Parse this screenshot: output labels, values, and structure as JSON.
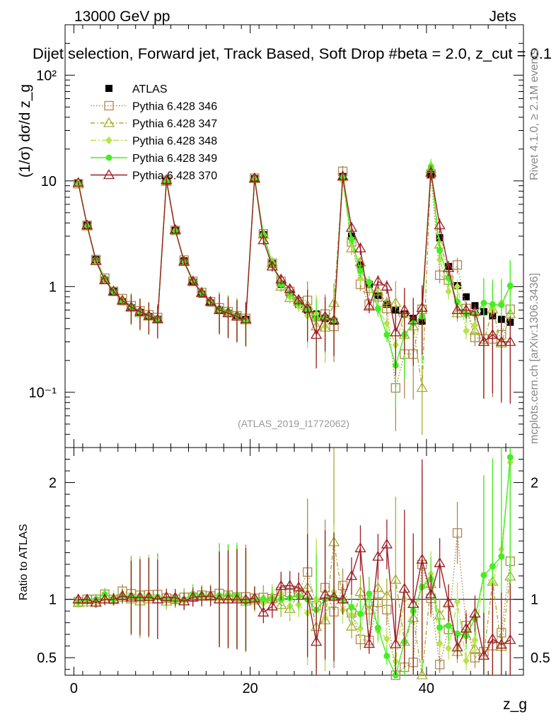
{
  "header": {
    "energy": "13000 GeV pp",
    "process": "Jets",
    "title": "Dijet selection, Forward jet, Track Based, Soft Drop #beta = 2.0, z_cut = 0.1",
    "watermark": "(ATLAS_2019_I1772062)",
    "side_top": "Rivet 4.1.0, ≥ 2.1M events",
    "side_bottom": "mcplots.cern.ch [arXiv:1306.3436]"
  },
  "chart_data": {
    "type": "line",
    "title": "Dijet selection, Forward jet, Track Based, Soft Drop #beta = 2.0, z_cut = 0.1",
    "xlabel": "z_g",
    "ylabel": "(1/σ) dσ/d z_g",
    "ratio_ylabel": "Ratio to ATLAS",
    "xlim": [
      -1,
      51
    ],
    "ylim": [
      0.03,
      300
    ],
    "yscale": "log",
    "ratio_ylim": [
      0.35,
      2.3
    ],
    "x_ticks": [
      "0",
      "20",
      "40"
    ],
    "y_tick_labels": [
      "10⁻¹",
      "1",
      "10",
      "10²"
    ],
    "ratio_ticks": [
      "0.5",
      "1",
      "2"
    ],
    "x": [
      0.5,
      1.5,
      2.5,
      3.5,
      4.5,
      5.5,
      6.5,
      7.5,
      8.5,
      9.5,
      10.5,
      11.5,
      12.5,
      13.5,
      14.5,
      15.5,
      16.5,
      17.5,
      18.5,
      19.5,
      20.5,
      21.5,
      22.5,
      23.5,
      24.5,
      25.5,
      26.5,
      27.5,
      28.5,
      29.5,
      30.5,
      31.5,
      32.5,
      33.5,
      34.5,
      35.5,
      36.5,
      37.5,
      38.5,
      39.5,
      40.5,
      41.5,
      42.5,
      43.5,
      44.5,
      45.5,
      46.5,
      47.5,
      48.5,
      49.5
    ],
    "series": [
      {
        "name": "ATLAS",
        "color": "#000000",
        "marker": "square-filled",
        "values": [
          9.6,
          3.8,
          1.8,
          1.15,
          0.9,
          0.72,
          0.63,
          0.57,
          0.52,
          0.49,
          10.0,
          3.4,
          1.75,
          1.1,
          0.85,
          0.7,
          0.6,
          0.56,
          0.52,
          0.49,
          10.5,
          3.1,
          1.65,
          1.05,
          0.85,
          0.68,
          0.6,
          0.55,
          0.5,
          0.47,
          11.0,
          3.0,
          1.6,
          1.05,
          0.82,
          0.68,
          0.6,
          0.55,
          0.5,
          0.47,
          11.5,
          2.9,
          1.55,
          1.02,
          0.8,
          0.66,
          0.58,
          0.53,
          0.49,
          0.46
        ]
      },
      {
        "name": "Pythia 6.428 346",
        "color": "#b08850",
        "marker": "square-open",
        "values": [
          9.4,
          3.8,
          1.8,
          1.2,
          0.9,
          0.77,
          0.66,
          0.59,
          0.54,
          0.51,
          10.1,
          3.4,
          1.78,
          1.12,
          0.88,
          0.72,
          0.63,
          0.58,
          0.53,
          0.5,
          10.6,
          3.15,
          1.66,
          1.12,
          0.9,
          0.72,
          0.74,
          0.52,
          0.55,
          0.42,
          12.3,
          2.65,
          1.05,
          0.68,
          0.8,
          0.62,
          0.11,
          0.23,
          0.23,
          0.61,
          11.6,
          1.28,
          1.15,
          1.6,
          0.62,
          0.33,
          0.32,
          0.32,
          0.35,
          0.61
        ]
      },
      {
        "name": "Pythia 6.428 347",
        "color": "#a6ad30",
        "marker": "triangle-open",
        "values": [
          9.3,
          3.7,
          1.75,
          1.15,
          0.9,
          0.73,
          0.63,
          0.56,
          0.52,
          0.49,
          9.8,
          3.4,
          1.72,
          1.12,
          0.88,
          0.72,
          0.6,
          0.58,
          0.53,
          0.48,
          10.4,
          3.1,
          1.68,
          1.0,
          0.78,
          0.72,
          0.66,
          0.42,
          0.41,
          0.7,
          11.0,
          2.3,
          1.7,
          0.95,
          0.9,
          0.7,
          0.7,
          0.35,
          0.42,
          0.11,
          13.0,
          2.5,
          1.5,
          0.56,
          0.6,
          0.38,
          0.3,
          0.61,
          0.29,
          0.55
        ]
      },
      {
        "name": "Pythia 6.428 348",
        "color": "#b8e34a",
        "marker": "diamond",
        "values": [
          9.5,
          3.8,
          1.75,
          1.15,
          0.92,
          0.75,
          0.65,
          0.59,
          0.54,
          0.5,
          9.9,
          3.4,
          1.72,
          1.13,
          0.88,
          0.73,
          0.6,
          0.56,
          0.53,
          0.48,
          10.5,
          3.0,
          1.68,
          1.1,
          0.8,
          0.65,
          0.53,
          0.55,
          0.42,
          0.5,
          10.0,
          2.6,
          1.2,
          1.1,
          0.6,
          0.45,
          0.28,
          0.55,
          0.45,
          0.52,
          14.0,
          1.8,
          0.9,
          1.0,
          0.38,
          0.43,
          0.7,
          0.6,
          0.7,
          1.0
        ]
      },
      {
        "name": "Pythia 6.428 349",
        "color": "#44ee22",
        "marker": "circle-cross",
        "values": [
          9.4,
          3.8,
          1.8,
          1.2,
          0.9,
          0.74,
          0.65,
          0.58,
          0.53,
          0.5,
          10.0,
          3.4,
          1.75,
          1.15,
          0.88,
          0.72,
          0.62,
          0.58,
          0.54,
          0.48,
          10.6,
          3.1,
          1.65,
          1.05,
          0.86,
          0.7,
          0.6,
          0.5,
          0.5,
          0.48,
          11.0,
          2.8,
          1.4,
          1.1,
          0.62,
          0.35,
          0.18,
          0.35,
          0.45,
          0.52,
          13.5,
          2.2,
          1.2,
          0.72,
          0.55,
          0.55,
          0.7,
          0.68,
          0.67,
          1.02
        ]
      },
      {
        "name": "Pythia 6.428 370",
        "color": "#9e1c24",
        "marker": "triangle-open",
        "values": [
          9.6,
          3.8,
          1.75,
          1.15,
          0.9,
          0.74,
          0.64,
          0.58,
          0.53,
          0.49,
          10.2,
          3.45,
          1.72,
          1.12,
          0.87,
          0.72,
          0.6,
          0.56,
          0.52,
          0.49,
          10.6,
          2.75,
          1.55,
          1.17,
          0.95,
          0.75,
          0.62,
          0.35,
          0.52,
          0.48,
          11.0,
          3.6,
          2.3,
          0.65,
          1.12,
          1.0,
          0.37,
          0.6,
          0.48,
          0.63,
          12.0,
          3.8,
          1.5,
          0.6,
          0.6,
          0.58,
          0.3,
          0.35,
          0.3,
          0.3
        ]
      }
    ],
    "legend_placement": "top-left"
  }
}
